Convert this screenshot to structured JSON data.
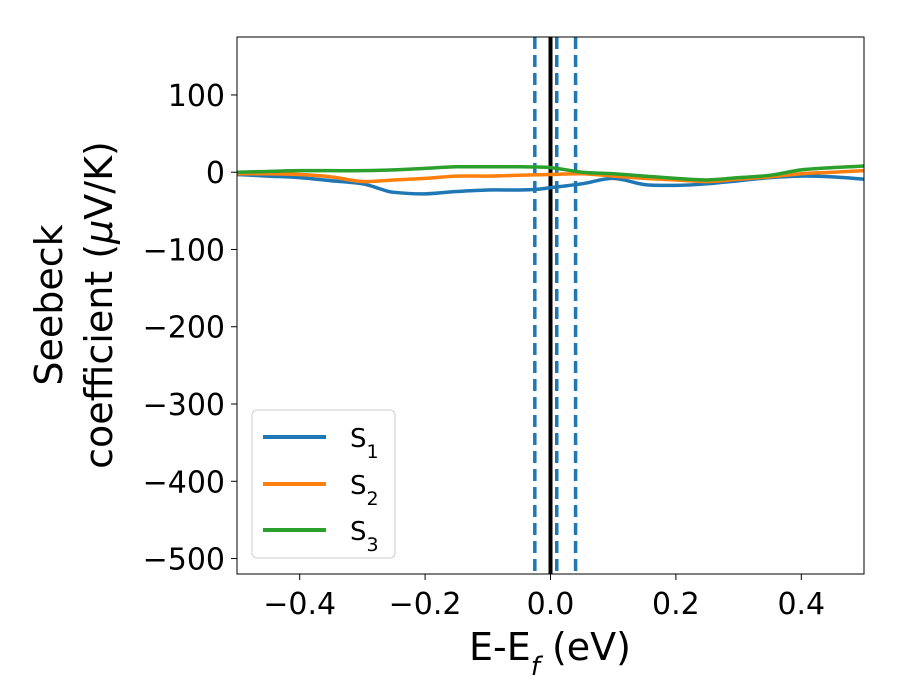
{
  "chart_data": {
    "type": "line",
    "xlabel": "E-E",
    "xlabel_sub": "f",
    "xlabel_unit": " (eV)",
    "ylabel_line1": "Seebeck",
    "ylabel_line2_pre": "coefficient  (",
    "ylabel_mu": "μ",
    "ylabel_line2_post": "V/K)",
    "xlim": [
      -0.5,
      0.5
    ],
    "ylim": [
      -520,
      175
    ],
    "x_ticks": [
      -0.4,
      -0.2,
      0.0,
      0.2,
      0.4
    ],
    "x_tick_labels": [
      "−0.4",
      "−0.2",
      "0.0",
      "0.2",
      "0.4"
    ],
    "y_ticks": [
      100,
      0,
      -100,
      -200,
      -300,
      -400,
      -500
    ],
    "y_tick_labels": [
      "100",
      "0",
      "−100",
      "−200",
      "−300",
      "−400",
      "−500"
    ],
    "grid": false,
    "legend_position": "lower-left",
    "series": [
      {
        "name": "S",
        "name_sub": "1",
        "color": "#1f77b4",
        "x": [
          -0.5,
          -0.45,
          -0.4,
          -0.35,
          -0.3,
          -0.27,
          -0.25,
          -0.2,
          -0.15,
          -0.1,
          -0.05,
          -0.02,
          0.0,
          0.05,
          0.1,
          0.15,
          0.2,
          0.25,
          0.3,
          0.35,
          0.4,
          0.45,
          0.5
        ],
        "y": [
          -3,
          -5,
          -7,
          -11,
          -15,
          -22,
          -26,
          -28,
          -25,
          -23,
          -23,
          -22,
          -20,
          -15,
          -8,
          -16,
          -17,
          -15,
          -11,
          -7,
          -5,
          -6,
          -9
        ]
      },
      {
        "name": "S",
        "name_sub": "2",
        "color": "#ff7f0e",
        "x": [
          -0.5,
          -0.45,
          -0.4,
          -0.35,
          -0.3,
          -0.25,
          -0.2,
          -0.15,
          -0.1,
          -0.05,
          0.0,
          0.05,
          0.1,
          0.15,
          0.2,
          0.25,
          0.3,
          0.35,
          0.4,
          0.45,
          0.5
        ],
        "y": [
          -2,
          -2,
          -3,
          -6,
          -12,
          -10,
          -8,
          -5,
          -5,
          -4,
          -3,
          -2,
          -5,
          -8,
          -10,
          -12,
          -9,
          -6,
          -2,
          0,
          2
        ]
      },
      {
        "name": "S",
        "name_sub": "3",
        "color": "#2ca02c",
        "x": [
          -0.5,
          -0.45,
          -0.4,
          -0.35,
          -0.3,
          -0.25,
          -0.2,
          -0.15,
          -0.1,
          -0.05,
          0.0,
          0.05,
          0.1,
          0.15,
          0.2,
          0.25,
          0.3,
          0.35,
          0.4,
          0.45,
          0.5
        ],
        "y": [
          0,
          1,
          2,
          2,
          2,
          3,
          5,
          7,
          7,
          7,
          6,
          0,
          -2,
          -5,
          -8,
          -10,
          -7,
          -4,
          3,
          6,
          8
        ]
      }
    ],
    "vlines": [
      {
        "x": -0.025,
        "style": "dashed",
        "color": "#1f77b4"
      },
      {
        "x": 0.0,
        "style": "solid",
        "color": "#000000"
      },
      {
        "x": 0.01,
        "style": "dashed",
        "color": "#1f77b4"
      },
      {
        "x": 0.04,
        "style": "dashed",
        "color": "#1f77b4"
      }
    ]
  }
}
